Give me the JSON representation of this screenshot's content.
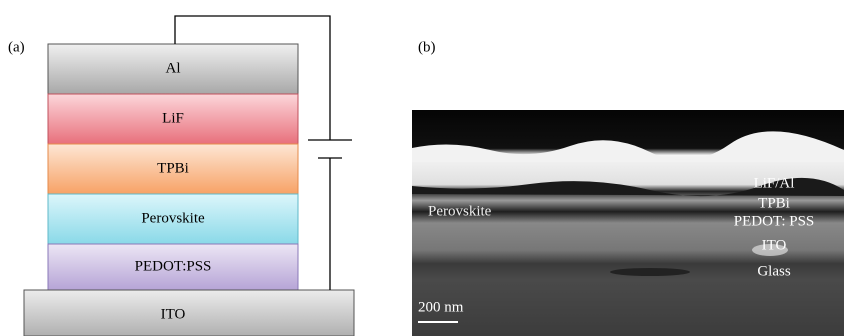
{
  "panel_a": {
    "label": "(a)",
    "layers": [
      "Al",
      "LiF",
      "TPBi",
      "Perovskite",
      "PEDOT:PSS",
      "ITO"
    ]
  },
  "panel_b": {
    "label": "(b)",
    "annotations": [
      "LiF/Al",
      "TPBi",
      "PEDOT: PSS",
      "ITO",
      "Glass"
    ],
    "side_label": "Perovskite",
    "scale_bar": "200 nm"
  }
}
